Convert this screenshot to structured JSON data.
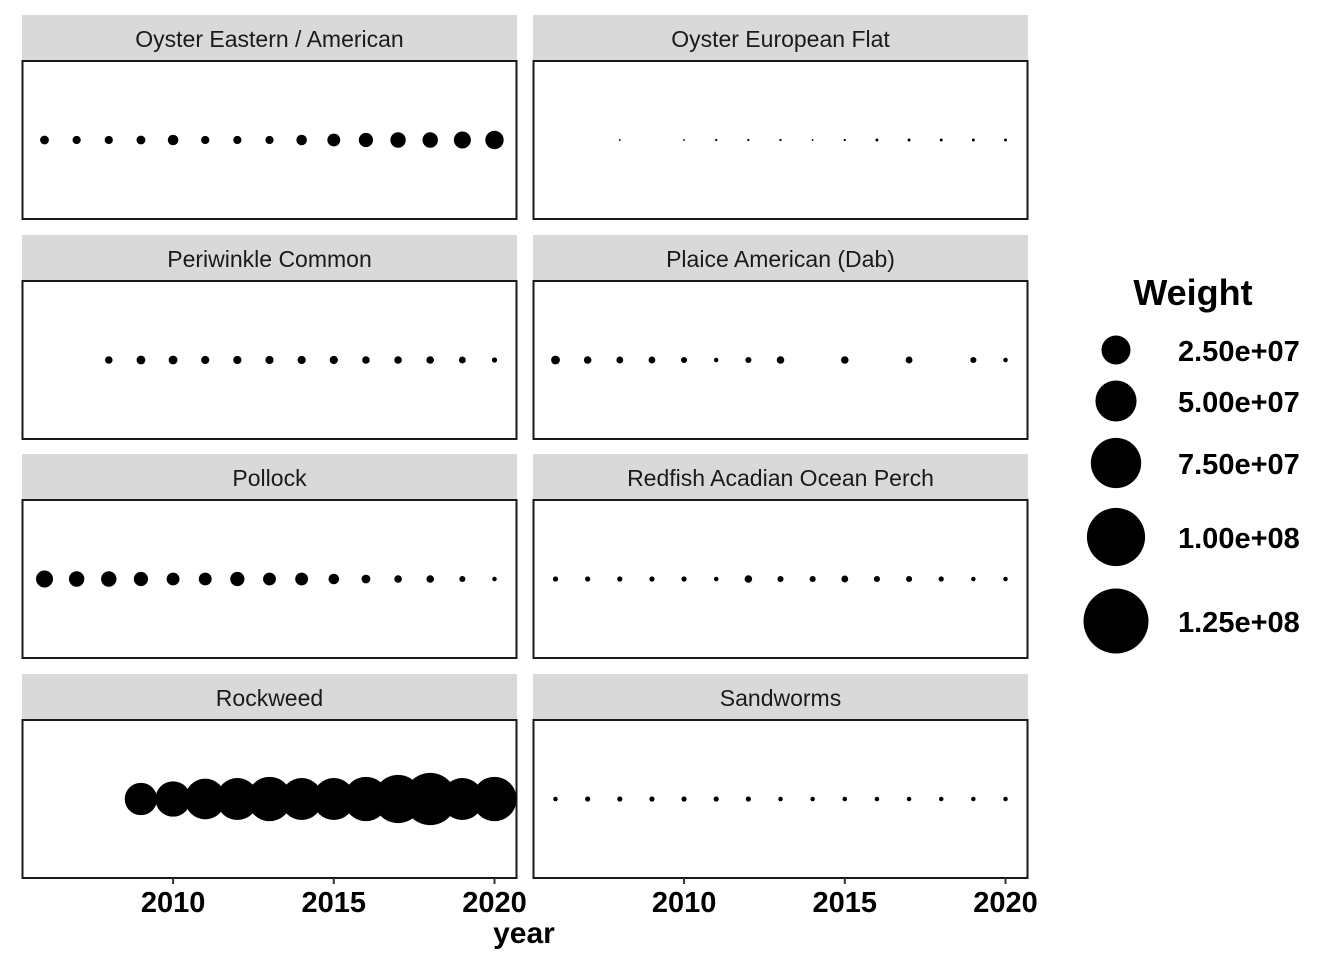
{
  "chart_data": {
    "type": "scatter",
    "subtype": "faceted bubble plot",
    "xlabel": "year",
    "ylabel": "",
    "xlim": [
      2005.3,
      2020.7
    ],
    "x_ticks": [
      "2010",
      "2015",
      "2020"
    ],
    "grid": false,
    "size_legend": {
      "title": "Weight",
      "placement": "right",
      "values": [
        25000000,
        50000000,
        75000000,
        100000000,
        125000000
      ],
      "labels": [
        "2.50e+07",
        "5.00e+07",
        "7.50e+07",
        "1.00e+08",
        "1.25e+08"
      ]
    },
    "facets": [
      {
        "name": "Oyster Eastern / American",
        "points": [
          {
            "x": 2006,
            "weight": 2300000
          },
          {
            "x": 2007,
            "weight": 2000000
          },
          {
            "x": 2008,
            "weight": 2000000
          },
          {
            "x": 2009,
            "weight": 2300000
          },
          {
            "x": 2010,
            "weight": 3300000
          },
          {
            "x": 2011,
            "weight": 2000000
          },
          {
            "x": 2012,
            "weight": 2000000
          },
          {
            "x": 2013,
            "weight": 2000000
          },
          {
            "x": 2014,
            "weight": 3300000
          },
          {
            "x": 2015,
            "weight": 4900000
          },
          {
            "x": 2016,
            "weight": 6000000
          },
          {
            "x": 2017,
            "weight": 7000000
          },
          {
            "x": 2018,
            "weight": 7000000
          },
          {
            "x": 2019,
            "weight": 8600000
          },
          {
            "x": 2020,
            "weight": 10000000
          }
        ]
      },
      {
        "name": "Oyster European Flat",
        "points": [
          {
            "x": 2008,
            "weight": 100000
          },
          {
            "x": 2010,
            "weight": 100000
          },
          {
            "x": 2011,
            "weight": 150000
          },
          {
            "x": 2012,
            "weight": 150000
          },
          {
            "x": 2013,
            "weight": 150000
          },
          {
            "x": 2014,
            "weight": 100000
          },
          {
            "x": 2015,
            "weight": 150000
          },
          {
            "x": 2016,
            "weight": 250000
          },
          {
            "x": 2017,
            "weight": 250000
          },
          {
            "x": 2018,
            "weight": 250000
          },
          {
            "x": 2019,
            "weight": 250000
          },
          {
            "x": 2020,
            "weight": 250000
          }
        ]
      },
      {
        "name": "Periwinkle Common",
        "points": [
          {
            "x": 2008,
            "weight": 1700000
          },
          {
            "x": 2009,
            "weight": 2300000
          },
          {
            "x": 2010,
            "weight": 2300000
          },
          {
            "x": 2011,
            "weight": 2000000
          },
          {
            "x": 2012,
            "weight": 2000000
          },
          {
            "x": 2013,
            "weight": 2000000
          },
          {
            "x": 2014,
            "weight": 2000000
          },
          {
            "x": 2015,
            "weight": 2000000
          },
          {
            "x": 2016,
            "weight": 1700000
          },
          {
            "x": 2017,
            "weight": 1700000
          },
          {
            "x": 2018,
            "weight": 1700000
          },
          {
            "x": 2019,
            "weight": 1400000
          },
          {
            "x": 2020,
            "weight": 800000
          }
        ]
      },
      {
        "name": "Plaice American (Dab)",
        "points": [
          {
            "x": 2006,
            "weight": 2300000
          },
          {
            "x": 2007,
            "weight": 1700000
          },
          {
            "x": 2008,
            "weight": 1400000
          },
          {
            "x": 2009,
            "weight": 1400000
          },
          {
            "x": 2010,
            "weight": 1100000
          },
          {
            "x": 2011,
            "weight": 600000
          },
          {
            "x": 2012,
            "weight": 1100000
          },
          {
            "x": 2013,
            "weight": 1700000
          },
          {
            "x": 2015,
            "weight": 1700000
          },
          {
            "x": 2017,
            "weight": 1400000
          },
          {
            "x": 2019,
            "weight": 1100000
          },
          {
            "x": 2020,
            "weight": 600000
          }
        ]
      },
      {
        "name": "Pollock",
        "points": [
          {
            "x": 2006,
            "weight": 8600000
          },
          {
            "x": 2007,
            "weight": 7000000
          },
          {
            "x": 2008,
            "weight": 7000000
          },
          {
            "x": 2009,
            "weight": 6000000
          },
          {
            "x": 2010,
            "weight": 4900000
          },
          {
            "x": 2011,
            "weight": 4900000
          },
          {
            "x": 2012,
            "weight": 6000000
          },
          {
            "x": 2013,
            "weight": 4900000
          },
          {
            "x": 2014,
            "weight": 4900000
          },
          {
            "x": 2015,
            "weight": 3300000
          },
          {
            "x": 2016,
            "weight": 2300000
          },
          {
            "x": 2017,
            "weight": 1700000
          },
          {
            "x": 2018,
            "weight": 1700000
          },
          {
            "x": 2019,
            "weight": 1100000
          },
          {
            "x": 2020,
            "weight": 600000
          }
        ]
      },
      {
        "name": "Redfish Acadian Ocean Perch",
        "points": [
          {
            "x": 2006,
            "weight": 800000
          },
          {
            "x": 2007,
            "weight": 800000
          },
          {
            "x": 2008,
            "weight": 800000
          },
          {
            "x": 2009,
            "weight": 800000
          },
          {
            "x": 2010,
            "weight": 800000
          },
          {
            "x": 2011,
            "weight": 600000
          },
          {
            "x": 2012,
            "weight": 1700000
          },
          {
            "x": 2013,
            "weight": 1100000
          },
          {
            "x": 2014,
            "weight": 1100000
          },
          {
            "x": 2015,
            "weight": 1400000
          },
          {
            "x": 2016,
            "weight": 1100000
          },
          {
            "x": 2017,
            "weight": 1100000
          },
          {
            "x": 2018,
            "weight": 800000
          },
          {
            "x": 2019,
            "weight": 600000
          },
          {
            "x": 2020,
            "weight": 600000
          }
        ]
      },
      {
        "name": "Rockweed",
        "points": [
          {
            "x": 2009,
            "weight": 31000000
          },
          {
            "x": 2010,
            "weight": 37000000
          },
          {
            "x": 2011,
            "weight": 49000000
          },
          {
            "x": 2012,
            "weight": 52000000
          },
          {
            "x": 2013,
            "weight": 58000000
          },
          {
            "x": 2014,
            "weight": 52000000
          },
          {
            "x": 2015,
            "weight": 52000000
          },
          {
            "x": 2016,
            "weight": 58000000
          },
          {
            "x": 2017,
            "weight": 69000000
          },
          {
            "x": 2018,
            "weight": 81000000
          },
          {
            "x": 2019,
            "weight": 52000000
          },
          {
            "x": 2020,
            "weight": 58000000
          }
        ]
      },
      {
        "name": "Sandworms",
        "points": [
          {
            "x": 2006,
            "weight": 600000
          },
          {
            "x": 2007,
            "weight": 800000
          },
          {
            "x": 2008,
            "weight": 800000
          },
          {
            "x": 2009,
            "weight": 800000
          },
          {
            "x": 2010,
            "weight": 800000
          },
          {
            "x": 2011,
            "weight": 800000
          },
          {
            "x": 2012,
            "weight": 800000
          },
          {
            "x": 2013,
            "weight": 600000
          },
          {
            "x": 2014,
            "weight": 600000
          },
          {
            "x": 2015,
            "weight": 600000
          },
          {
            "x": 2016,
            "weight": 600000
          },
          {
            "x": 2017,
            "weight": 600000
          },
          {
            "x": 2018,
            "weight": 600000
          },
          {
            "x": 2019,
            "weight": 600000
          },
          {
            "x": 2020,
            "weight": 600000
          }
        ]
      }
    ]
  }
}
